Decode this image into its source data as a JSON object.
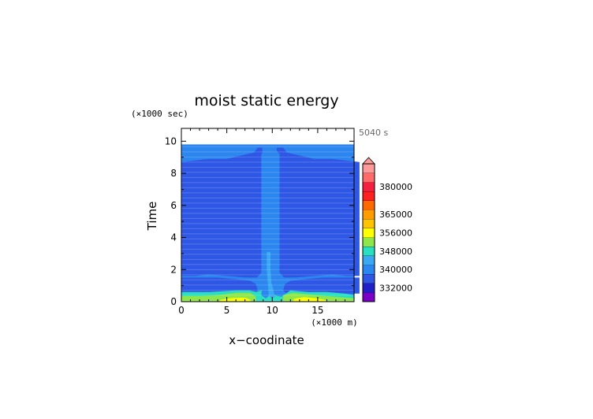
{
  "chart_data": {
    "type": "heatmap",
    "title": "moist static energy",
    "xlabel": "x−coodinate",
    "ylabel": "Time",
    "x_unit_label": "(×1000 m)",
    "y_unit_label": "(×1000 sec)",
    "time_stamp": "5040 s",
    "xlim": [
      0,
      19
    ],
    "ylim": [
      0,
      10.8
    ],
    "x_ticks": [
      0,
      5,
      10,
      15
    ],
    "y_ticks": [
      0,
      2,
      4,
      6,
      8,
      10
    ],
    "x_tick_labels": [
      "0",
      "5",
      "10",
      "15"
    ],
    "y_tick_labels": [
      "0",
      "2",
      "4",
      "6",
      "8",
      "10"
    ],
    "data_top": 9.8,
    "colorbar": {
      "levels": [
        328000,
        332000,
        336000,
        340000,
        344000,
        348000,
        352000,
        356000,
        360000,
        365000,
        370000,
        375000,
        380000,
        385000,
        390000
      ],
      "colors": [
        "#7a00c8",
        "#2020c8",
        "#2f57e6",
        "#2c86ef",
        "#3ba8f3",
        "#29dfc0",
        "#8ee64a",
        "#ffff00",
        "#ffc400",
        "#ff9c00",
        "#ff6a00",
        "#ff2020",
        "#f52040",
        "#ff6a6a",
        "#ff9a9a"
      ],
      "extend_top_color": "#ff9a9a",
      "labels": [
        "380000",
        "365000",
        "356000",
        "348000",
        "340000",
        "332000"
      ]
    },
    "regions": [
      {
        "name": "background",
        "value": 342000
      },
      {
        "name": "upper-layer",
        "value": 338000
      },
      {
        "name": "lower-layer",
        "value": 339000
      },
      {
        "name": "central-column",
        "value": 343000
      },
      {
        "name": "central-column-core",
        "value": 346000
      },
      {
        "name": "near-surface-band",
        "value": 348000
      },
      {
        "name": "surface-warm-left",
        "value": 352000
      },
      {
        "name": "surface-warm-right",
        "value": 352000
      },
      {
        "name": "surface-peak-left",
        "value": 356000
      },
      {
        "name": "surface-peak-right",
        "value": 356000
      }
    ]
  }
}
